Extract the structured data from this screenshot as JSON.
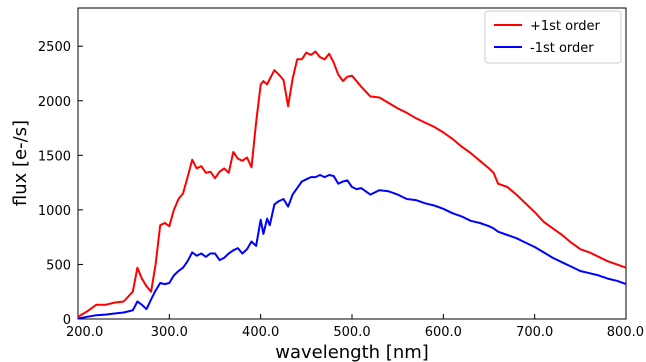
{
  "chart_data": {
    "type": "line",
    "title": "",
    "xlabel": "wavelength [nm]",
    "ylabel": "flux [e-/s]",
    "xlim": [
      200,
      800
    ],
    "ylim": [
      0,
      2850
    ],
    "x_ticks": [
      200,
      300,
      400,
      500,
      600,
      700,
      800
    ],
    "x_tick_labels": [
      "200.0",
      "300.0",
      "400.0",
      "500.0",
      "600.0",
      "700.0",
      "800.0"
    ],
    "y_ticks": [
      0,
      500,
      1000,
      1500,
      2000,
      2500
    ],
    "y_tick_labels": [
      "0",
      "500",
      "1000",
      "1500",
      "2000",
      "2500"
    ],
    "grid": false,
    "legend_position": "top-right",
    "series": [
      {
        "name": "+1st order",
        "color": "#ff0000",
        "x": [
          200,
          210,
          220,
          230,
          240,
          250,
          260,
          265,
          270,
          275,
          280,
          285,
          290,
          295,
          300,
          305,
          310,
          315,
          320,
          325,
          330,
          335,
          340,
          345,
          350,
          355,
          360,
          365,
          370,
          375,
          380,
          385,
          390,
          395,
          400,
          403,
          407,
          410,
          415,
          420,
          425,
          430,
          435,
          440,
          445,
          450,
          455,
          460,
          465,
          470,
          475,
          480,
          485,
          490,
          495,
          500,
          505,
          510,
          520,
          530,
          540,
          550,
          560,
          570,
          580,
          590,
          600,
          610,
          620,
          630,
          640,
          650,
          655,
          660,
          670,
          680,
          690,
          700,
          710,
          720,
          730,
          740,
          750,
          760,
          770,
          780,
          790,
          800
        ],
        "y": [
          20,
          70,
          130,
          130,
          150,
          160,
          250,
          470,
          370,
          300,
          250,
          500,
          860,
          880,
          850,
          1000,
          1100,
          1150,
          1300,
          1460,
          1380,
          1400,
          1340,
          1350,
          1290,
          1350,
          1380,
          1340,
          1530,
          1470,
          1450,
          1480,
          1390,
          1800,
          2150,
          2180,
          2150,
          2200,
          2280,
          2240,
          2190,
          1950,
          2200,
          2380,
          2380,
          2440,
          2420,
          2450,
          2400,
          2380,
          2430,
          2350,
          2240,
          2180,
          2220,
          2230,
          2180,
          2130,
          2040,
          2030,
          1980,
          1930,
          1890,
          1840,
          1800,
          1760,
          1710,
          1650,
          1580,
          1520,
          1450,
          1380,
          1340,
          1240,
          1210,
          1140,
          1060,
          980,
          890,
          830,
          770,
          700,
          640,
          610,
          570,
          530,
          500,
          470
        ]
      },
      {
        "name": "-1st order",
        "color": "#0000ff",
        "x": [
          200,
          210,
          220,
          230,
          240,
          250,
          260,
          265,
          270,
          275,
          280,
          285,
          290,
          295,
          300,
          305,
          310,
          315,
          320,
          325,
          330,
          335,
          340,
          345,
          350,
          355,
          360,
          365,
          370,
          375,
          380,
          385,
          390,
          395,
          400,
          403,
          407,
          410,
          415,
          420,
          425,
          430,
          435,
          440,
          445,
          450,
          455,
          460,
          465,
          470,
          475,
          480,
          485,
          490,
          495,
          500,
          505,
          510,
          520,
          530,
          540,
          550,
          560,
          570,
          580,
          590,
          600,
          610,
          620,
          630,
          640,
          650,
          655,
          660,
          670,
          680,
          690,
          700,
          710,
          720,
          730,
          740,
          750,
          760,
          770,
          780,
          790,
          800
        ],
        "y": [
          5,
          20,
          35,
          40,
          50,
          60,
          80,
          160,
          130,
          90,
          180,
          260,
          330,
          320,
          330,
          400,
          440,
          470,
          530,
          610,
          580,
          600,
          570,
          600,
          600,
          540,
          560,
          600,
          630,
          650,
          600,
          640,
          710,
          670,
          910,
          780,
          920,
          860,
          1050,
          1080,
          1100,
          1030,
          1140,
          1200,
          1260,
          1280,
          1300,
          1300,
          1320,
          1300,
          1320,
          1310,
          1240,
          1260,
          1270,
          1210,
          1190,
          1200,
          1140,
          1180,
          1170,
          1140,
          1100,
          1090,
          1060,
          1040,
          1010,
          970,
          940,
          900,
          880,
          850,
          830,
          800,
          770,
          740,
          700,
          660,
          610,
          560,
          520,
          480,
          440,
          420,
          400,
          370,
          350,
          320
        ]
      }
    ]
  }
}
